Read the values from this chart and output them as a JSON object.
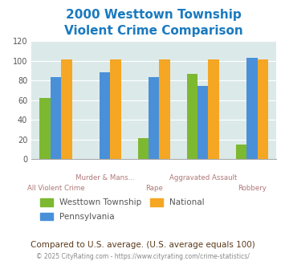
{
  "title": "2000 Westtown Township\nViolent Crime Comparison",
  "categories": [
    "All Violent Crime",
    "Murder & Mans...",
    "Rape",
    "Aggravated Assault",
    "Robbery"
  ],
  "series_order": [
    "Westtown Township",
    "Pennsylvania",
    "National"
  ],
  "series": {
    "Westtown Township": [
      62,
      0,
      21,
      87,
      15
    ],
    "Pennsylvania": [
      83,
      88,
      83,
      74,
      103
    ],
    "National": [
      101,
      101,
      101,
      101,
      101
    ]
  },
  "colors": {
    "Westtown Township": "#7db831",
    "Pennsylvania": "#4a90d9",
    "National": "#f5a623"
  },
  "ylim": [
    0,
    120
  ],
  "yticks": [
    0,
    20,
    40,
    60,
    80,
    100,
    120
  ],
  "background_color": "#dce9e9",
  "title_color": "#1a7abf",
  "xlabel_color": "#b07878",
  "legend_text_color": "#555555",
  "footer_text": "Compared to U.S. average. (U.S. average equals 100)",
  "footer_color": "#5a3a1a",
  "copyright_text": "© 2025 CityRating.com - https://www.cityrating.com/crime-statistics/",
  "copyright_color": "#888888"
}
